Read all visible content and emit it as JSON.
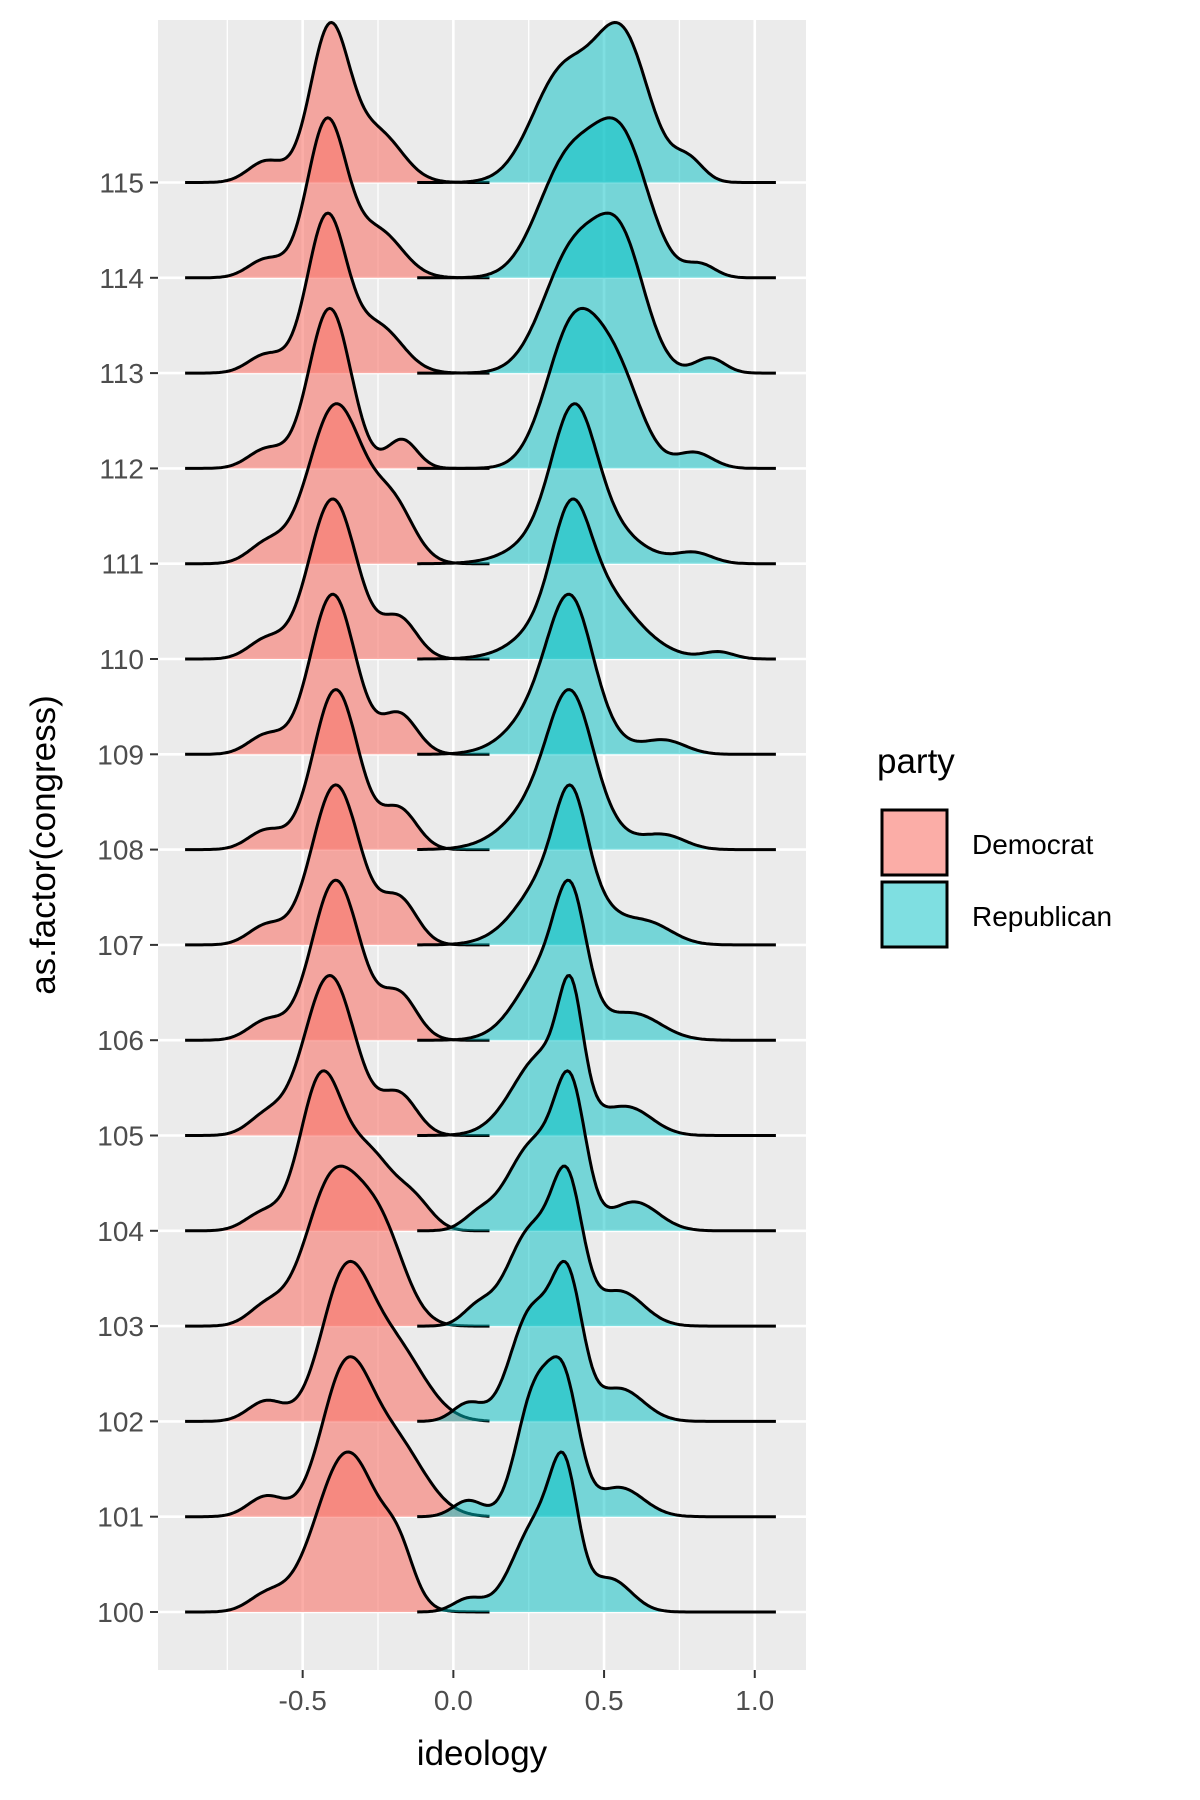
{
  "chart_data": {
    "type": "area",
    "subtype": "ridgeline density",
    "title": "",
    "xlabel": "ideology",
    "ylabel": "as.factor(congress)",
    "xlim": [
      -0.98,
      1.17
    ],
    "x_ticks": [
      "-0.5",
      "0.0",
      "0.5",
      "1.0"
    ],
    "categories": [
      "100",
      "101",
      "102",
      "103",
      "104",
      "105",
      "106",
      "107",
      "108",
      "109",
      "110",
      "111",
      "112",
      "113",
      "114",
      "115"
    ],
    "grid": true,
    "legend": {
      "title": "party",
      "position": "right",
      "entries": [
        {
          "label": "Democrat",
          "color": "#F8766D"
        },
        {
          "label": "Republican",
          "color": "#00BFC4"
        }
      ]
    },
    "series": [
      {
        "name": "Democrat",
        "color": "#F8766D",
        "range": [
          -0.89,
          0.12
        ],
        "ridges": [
          {
            "congress": "100",
            "peaks": [
              [
                -0.35,
                0.105,
                1.0
              ],
              [
                -0.18,
                0.05,
                0.25
              ],
              [
                -0.62,
                0.06,
                0.1
              ]
            ]
          },
          {
            "congress": "101",
            "peaks": [
              [
                -0.36,
                0.08,
                1.0
              ],
              [
                -0.2,
                0.1,
                0.55
              ],
              [
                -0.62,
                0.06,
                0.15
              ]
            ]
          },
          {
            "congress": "102",
            "peaks": [
              [
                -0.36,
                0.08,
                1.0
              ],
              [
                -0.2,
                0.1,
                0.55
              ],
              [
                -0.62,
                0.06,
                0.15
              ]
            ]
          },
          {
            "congress": "103",
            "peaks": [
              [
                -0.4,
                0.09,
                0.9
              ],
              [
                -0.24,
                0.08,
                0.55
              ],
              [
                -0.62,
                0.06,
                0.12
              ]
            ]
          },
          {
            "congress": "104",
            "peaks": [
              [
                -0.44,
                0.07,
                1.0
              ],
              [
                -0.28,
                0.08,
                0.5
              ],
              [
                -0.13,
                0.06,
                0.18
              ],
              [
                -0.63,
                0.06,
                0.12
              ]
            ]
          },
          {
            "congress": "105",
            "peaks": [
              [
                -0.41,
                0.085,
                1.0
              ],
              [
                -0.18,
                0.06,
                0.25
              ],
              [
                -0.62,
                0.06,
                0.12
              ]
            ]
          },
          {
            "congress": "106",
            "peaks": [
              [
                -0.39,
                0.08,
                1.0
              ],
              [
                -0.18,
                0.06,
                0.28
              ],
              [
                -0.62,
                0.06,
                0.12
              ]
            ]
          },
          {
            "congress": "107",
            "peaks": [
              [
                -0.39,
                0.08,
                1.0
              ],
              [
                -0.18,
                0.06,
                0.28
              ],
              [
                -0.62,
                0.06,
                0.12
              ]
            ]
          },
          {
            "congress": "108",
            "peaks": [
              [
                -0.39,
                0.075,
                1.0
              ],
              [
                -0.18,
                0.06,
                0.25
              ],
              [
                -0.62,
                0.06,
                0.12
              ]
            ]
          },
          {
            "congress": "109",
            "peaks": [
              [
                -0.4,
                0.075,
                1.0
              ],
              [
                -0.18,
                0.06,
                0.25
              ],
              [
                -0.62,
                0.06,
                0.12
              ]
            ]
          },
          {
            "congress": "110",
            "peaks": [
              [
                -0.4,
                0.08,
                1.0
              ],
              [
                -0.18,
                0.06,
                0.25
              ],
              [
                -0.62,
                0.06,
                0.12
              ]
            ]
          },
          {
            "congress": "111",
            "peaks": [
              [
                -0.39,
                0.09,
                1.0
              ],
              [
                -0.2,
                0.07,
                0.35
              ],
              [
                -0.62,
                0.06,
                0.12
              ]
            ]
          },
          {
            "congress": "112",
            "peaks": [
              [
                -0.41,
                0.07,
                1.0
              ],
              [
                -0.17,
                0.05,
                0.18
              ],
              [
                -0.62,
                0.06,
                0.12
              ]
            ]
          },
          {
            "congress": "113",
            "peaks": [
              [
                -0.42,
                0.065,
                1.0
              ],
              [
                -0.25,
                0.08,
                0.3
              ],
              [
                -0.62,
                0.06,
                0.12
              ]
            ]
          },
          {
            "congress": "114",
            "peaks": [
              [
                -0.42,
                0.065,
                1.0
              ],
              [
                -0.25,
                0.08,
                0.3
              ],
              [
                -0.62,
                0.06,
                0.12
              ]
            ]
          },
          {
            "congress": "115",
            "peaks": [
              [
                -0.41,
                0.065,
                1.0
              ],
              [
                -0.25,
                0.08,
                0.32
              ],
              [
                -0.62,
                0.06,
                0.14
              ]
            ]
          }
        ]
      },
      {
        "name": "Republican",
        "color": "#00BFC4",
        "range": [
          -0.12,
          1.07
        ],
        "ridges": [
          {
            "congress": "100",
            "peaks": [
              [
                0.37,
                0.045,
                0.65
              ],
              [
                0.28,
                0.08,
                0.55
              ],
              [
                0.52,
                0.07,
                0.2
              ],
              [
                0.05,
                0.05,
                0.08
              ]
            ]
          },
          {
            "congress": "101",
            "peaks": [
              [
                0.37,
                0.05,
                0.72
              ],
              [
                0.27,
                0.06,
                0.75
              ],
              [
                0.55,
                0.08,
                0.18
              ],
              [
                0.05,
                0.05,
                0.1
              ]
            ]
          },
          {
            "congress": "102",
            "peaks": [
              [
                0.38,
                0.05,
                0.7
              ],
              [
                0.26,
                0.07,
                0.6
              ],
              [
                0.55,
                0.08,
                0.18
              ],
              [
                0.05,
                0.05,
                0.1
              ]
            ]
          },
          {
            "congress": "103",
            "peaks": [
              [
                0.38,
                0.05,
                0.7
              ],
              [
                0.26,
                0.08,
                0.55
              ],
              [
                0.55,
                0.08,
                0.2
              ],
              [
                0.08,
                0.05,
                0.1
              ]
            ]
          },
          {
            "congress": "104",
            "peaks": [
              [
                0.39,
                0.05,
                0.75
              ],
              [
                0.27,
                0.09,
                0.55
              ],
              [
                0.6,
                0.08,
                0.18
              ],
              [
                0.08,
                0.05,
                0.08
              ]
            ]
          },
          {
            "congress": "105",
            "peaks": [
              [
                0.39,
                0.04,
                0.75
              ],
              [
                0.3,
                0.1,
                0.6
              ],
              [
                0.58,
                0.08,
                0.2
              ]
            ]
          },
          {
            "congress": "106",
            "peaks": [
              [
                0.39,
                0.05,
                0.75
              ],
              [
                0.32,
                0.1,
                0.6
              ],
              [
                0.6,
                0.09,
                0.2
              ]
            ]
          },
          {
            "congress": "107",
            "peaks": [
              [
                0.39,
                0.05,
                0.6
              ],
              [
                0.36,
                0.12,
                0.65
              ],
              [
                0.65,
                0.08,
                0.15
              ]
            ]
          },
          {
            "congress": "108",
            "peaks": [
              [
                0.39,
                0.07,
                0.7
              ],
              [
                0.35,
                0.13,
                0.5
              ],
              [
                0.7,
                0.07,
                0.1
              ]
            ]
          },
          {
            "congress": "109",
            "peaks": [
              [
                0.39,
                0.07,
                0.7
              ],
              [
                0.35,
                0.12,
                0.5
              ],
              [
                0.7,
                0.07,
                0.1
              ]
            ]
          },
          {
            "congress": "110",
            "peaks": [
              [
                0.39,
                0.06,
                0.6
              ],
              [
                0.44,
                0.14,
                0.6
              ],
              [
                0.88,
                0.05,
                0.05
              ]
            ]
          },
          {
            "congress": "111",
            "peaks": [
              [
                0.4,
                0.07,
                0.8
              ],
              [
                0.42,
                0.14,
                0.45
              ],
              [
                0.8,
                0.06,
                0.08
              ]
            ]
          },
          {
            "congress": "112",
            "peaks": [
              [
                0.4,
                0.09,
                0.9
              ],
              [
                0.55,
                0.08,
                0.5
              ],
              [
                0.8,
                0.06,
                0.1
              ]
            ]
          },
          {
            "congress": "113",
            "peaks": [
              [
                0.4,
                0.1,
                0.8
              ],
              [
                0.56,
                0.08,
                0.75
              ],
              [
                0.85,
                0.05,
                0.1
              ]
            ]
          },
          {
            "congress": "114",
            "peaks": [
              [
                0.38,
                0.1,
                0.7
              ],
              [
                0.56,
                0.09,
                0.8
              ],
              [
                0.82,
                0.05,
                0.08
              ]
            ]
          },
          {
            "congress": "115",
            "peaks": [
              [
                0.36,
                0.1,
                0.6
              ],
              [
                0.56,
                0.09,
                0.8
              ],
              [
                0.78,
                0.05,
                0.12
              ]
            ]
          }
        ]
      }
    ]
  }
}
